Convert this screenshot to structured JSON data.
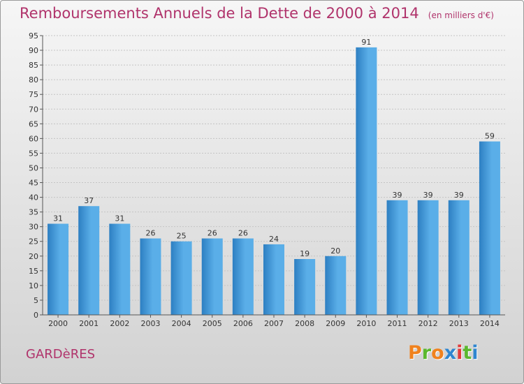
{
  "title": "Remboursements Annuels de la Dette de 2000 à 2014",
  "unit": "(en milliers d'€)",
  "commune": "GARDèRES",
  "brand": {
    "letters": [
      "P",
      "r",
      "o",
      "x",
      "i",
      "t",
      "i"
    ],
    "colors": [
      "#f0821e",
      "#5bb82e",
      "#f0821e",
      "#2f86d0",
      "#e23b3b",
      "#5bb82e",
      "#2f86d0"
    ]
  },
  "colors": {
    "bar_light": "#5aaee8",
    "bar_dark": "#2d7fc2",
    "grid": "#c4c4c4",
    "title": "#b0336b"
  },
  "chart_data": {
    "type": "bar",
    "title": "Remboursements Annuels de la Dette de 2000 à 2014",
    "xlabel": "",
    "ylabel": "",
    "categories": [
      "2000",
      "2001",
      "2002",
      "2003",
      "2004",
      "2005",
      "2006",
      "2007",
      "2008",
      "2009",
      "2010",
      "2011",
      "2012",
      "2013",
      "2014"
    ],
    "values": [
      31,
      37,
      31,
      26,
      25,
      26,
      26,
      24,
      19,
      20,
      91,
      39,
      39,
      39,
      59
    ],
    "ylim": [
      0,
      95
    ],
    "ytick_step": 5,
    "grid": true,
    "data_labels": true
  }
}
